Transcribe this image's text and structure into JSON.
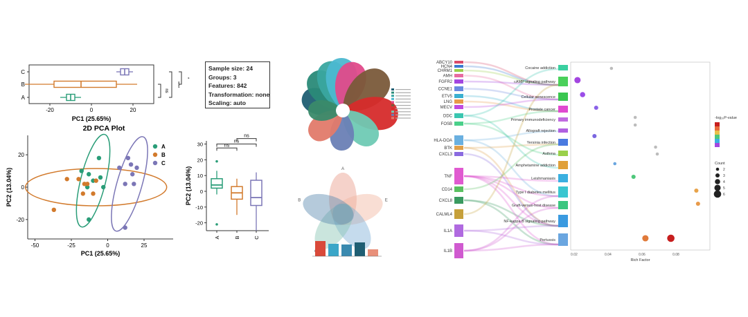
{
  "colors": {
    "A": "#2a9d78",
    "B": "#d27a2c",
    "C": "#7b76b6"
  },
  "pca_box_top": {
    "groups": [
      "C",
      "B",
      "A"
    ],
    "xlabel": "PC1 (25.65%)",
    "xticks": [
      "-20",
      "0",
      "20"
    ],
    "sig_labels": [
      "ns",
      "****",
      "*"
    ]
  },
  "pca_scatter": {
    "title": "2D PCA Plot",
    "xlabel": "PC1 (25.65%)",
    "ylabel": "PC2 (13.04%)",
    "xticks": [
      "-50",
      "-25",
      "0",
      "25"
    ],
    "yticks": [
      "20",
      "0",
      "-20"
    ],
    "legend": [
      "A",
      "B",
      "C"
    ]
  },
  "info": {
    "sample_size": "Sample size: 24",
    "groups": "Groups: 3",
    "features": "Features: 842",
    "transformation": "Transformation: none",
    "scaling": "Scaling: auto"
  },
  "pc2_box": {
    "ylabel": "PC2 (13.04%)",
    "yticks": [
      "30",
      "20",
      "10",
      "0",
      "-10",
      "-20"
    ],
    "xticks": [
      "A",
      "B",
      "C"
    ],
    "sig_labels": [
      "ns",
      "ns",
      "ns"
    ]
  },
  "enrichment": {
    "genes": [
      "ABCY10",
      "HCN4",
      "CHRM1",
      "AMH",
      "FGFR2",
      "CCNE1",
      "ETV5",
      "LNG",
      "MECV",
      "DDC",
      "FOSB",
      "HLA-DOA",
      "BTK",
      "CXCL3",
      "TNF",
      "CD14",
      "CXCL8",
      "CALML4",
      "IL1A",
      "IL1B"
    ],
    "pathways": [
      "Cocaine addiction",
      "cAMP signaling pathway",
      "Cellular senescence",
      "Prostate cancer",
      "Primary immunodeficiency",
      "Allograft rejection",
      "Yersinia infection",
      "Asthma",
      "Amphetamine addiction",
      "Leishmaniasis",
      "Type I diabetes mellitus",
      "Graft-versus-host disease",
      "NF-kappa B signaling pathway",
      "Pertussis"
    ],
    "x_label": "Rich Factor",
    "legend_title": "-log₁₀P-value",
    "count_title": "Count",
    "count_values": [
      "2",
      "3",
      "4",
      "5",
      "6"
    ]
  },
  "chart_data": [
    {
      "type": "box",
      "title": "",
      "xlabel": "PC1 (25.65%)",
      "categories": [
        "A",
        "B",
        "C"
      ],
      "stats": [
        {
          "group": "A",
          "min": -15,
          "q1": -12,
          "median": -10,
          "q3": -8,
          "max": -5
        },
        {
          "group": "B",
          "min": -32,
          "q1": -18,
          "median": -5,
          "q3": 12,
          "max": 22
        },
        {
          "group": "C",
          "min": 12,
          "q1": 14,
          "median": 16,
          "q3": 18,
          "max": 20
        }
      ],
      "xlim": [
        -30,
        30
      ],
      "comparisons": [
        {
          "pair": [
            "A",
            "B"
          ],
          "label": "ns"
        },
        {
          "pair": [
            "A",
            "C"
          ],
          "label": "****"
        },
        {
          "pair": [
            "B",
            "C"
          ],
          "label": "*"
        }
      ]
    },
    {
      "type": "scatter",
      "title": "2D PCA Plot",
      "xlabel": "PC1 (25.65%)",
      "ylabel": "PC2 (13.04%)",
      "xlim": [
        -55,
        45
      ],
      "ylim": [
        -32,
        32
      ],
      "series": [
        {
          "name": "A",
          "points": [
            [
              -18,
              10
            ],
            [
              -13,
              8
            ],
            [
              -10,
              4
            ],
            [
              -6,
              18
            ],
            [
              -5,
              6
            ],
            [
              -3,
              0
            ],
            [
              -14,
              0
            ],
            [
              -13,
              -20
            ]
          ]
        },
        {
          "name": "B",
          "points": [
            [
              -28,
              5
            ],
            [
              -20,
              5
            ],
            [
              -14,
              2
            ],
            [
              -10,
              -4
            ],
            [
              -8,
              4
            ],
            [
              -37,
              -14
            ],
            [
              -17,
              -4
            ],
            [
              -16,
              2
            ]
          ]
        },
        {
          "name": "C",
          "points": [
            [
              8,
              12
            ],
            [
              14,
              18
            ],
            [
              16,
              14
            ],
            [
              17,
              8
            ],
            [
              20,
              12
            ],
            [
              12,
              2
            ],
            [
              18,
              2
            ],
            [
              12,
              -25
            ]
          ]
        }
      ]
    },
    {
      "type": "box",
      "title": "",
      "ylabel": "PC2 (13.04%)",
      "categories": [
        "A",
        "B",
        "C"
      ],
      "stats": [
        {
          "group": "A",
          "min": -2,
          "q1": 2,
          "median": 4,
          "q3": 8,
          "max": 13
        },
        {
          "group": "B",
          "min": -15,
          "q1": -5,
          "median": -1,
          "q3": 3,
          "max": 8
        },
        {
          "group": "C",
          "min": -25,
          "q1": -9,
          "median": -4,
          "q3": 7,
          "max": 12
        }
      ],
      "outliers": [
        {
          "group": "A",
          "value": 19
        },
        {
          "group": "A",
          "value": -21
        }
      ],
      "ylim": [
        -25,
        32
      ],
      "comparisons": [
        {
          "pair": [
            "A",
            "B"
          ],
          "label": "ns"
        },
        {
          "pair": [
            "A",
            "C"
          ],
          "label": "ns"
        },
        {
          "pair": [
            "B",
            "C"
          ],
          "label": "ns"
        }
      ]
    },
    {
      "type": "scatter",
      "title": "",
      "xlabel": "Rich Factor",
      "xticks": [
        "0.02",
        "0.04",
        "0.06",
        "0.08"
      ],
      "series": [
        {
          "name": "pathways",
          "points": [
            {
              "pathway": "Cocaine addiction",
              "x": 0.042,
              "size": 2,
              "color": "#bcbcbc"
            },
            {
              "pathway": "cAMP signaling pathway",
              "x": 0.022,
              "size": 5,
              "color": "#a346e0"
            },
            {
              "pathway": "Cellular senescence",
              "x": 0.025,
              "size": 4,
              "color": "#9b4de8"
            },
            {
              "pathway": "Prostate cancer",
              "x": 0.033,
              "size": 3,
              "color": "#8a61e8"
            },
            {
              "pathway": "Primary immunodeficiency",
              "x": 0.056,
              "size": 2,
              "color": "#bcbcbc"
            },
            {
              "pathway": "Allograft rejection",
              "x": 0.056,
              "size": 2,
              "color": "#bcbcbc"
            },
            {
              "pathway": "Yersinia infection",
              "x": 0.032,
              "size": 3,
              "color": "#7a66e0"
            },
            {
              "pathway": "Asthma",
              "x": 0.068,
              "size": 2,
              "color": "#bcbcbc"
            },
            {
              "pathway": "Amphetamine addiction",
              "x": 0.069,
              "size": 2,
              "color": "#bcbcbc"
            },
            {
              "pathway": "Leishmaniasis",
              "x": 0.044,
              "size": 2,
              "color": "#6aa6e0"
            },
            {
              "pathway": "Type I diabetes mellitus",
              "x": 0.055,
              "size": 3,
              "color": "#4ec77a"
            },
            {
              "pathway": "Graft-versus-host disease",
              "x": 0.092,
              "size": 3,
              "color": "#e8a34a"
            },
            {
              "pathway": "NF-kappa B signaling pathway",
              "x": 0.093,
              "size": 3,
              "color": "#e89a4a"
            },
            {
              "pathway": "Pertussis",
              "x": 0.062,
              "size": 5,
              "color": "#e07a3a"
            },
            {
              "pathway": "Pertussis",
              "x": 0.077,
              "size": 6,
              "color": "#c71e1e"
            }
          ]
        }
      ]
    }
  ]
}
